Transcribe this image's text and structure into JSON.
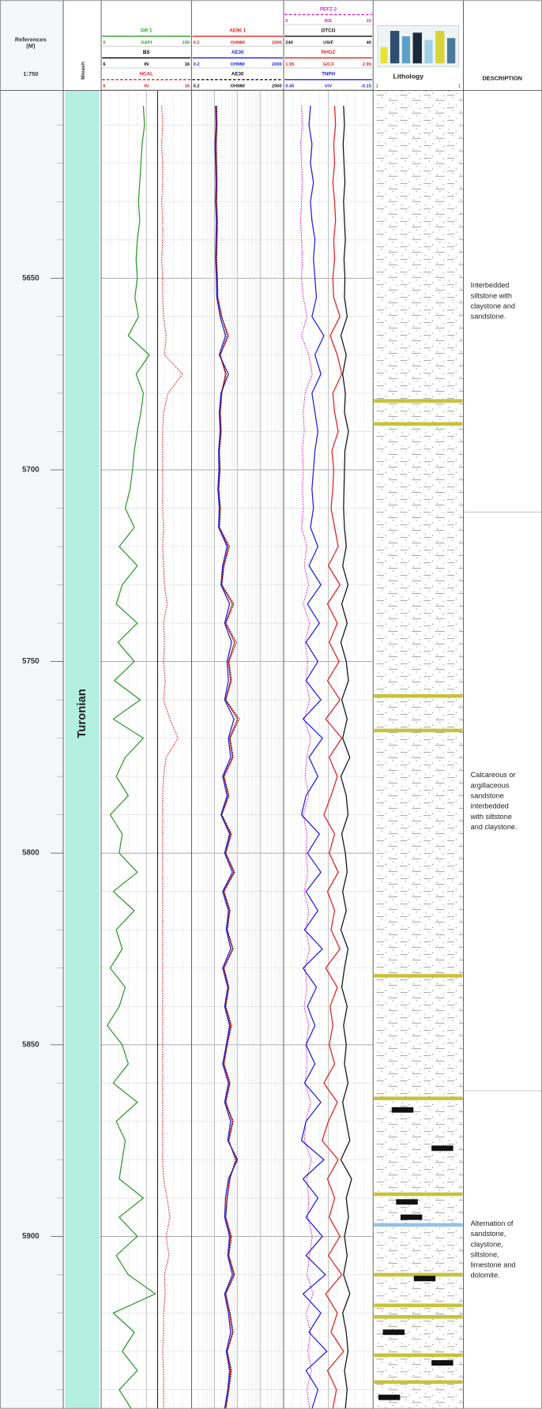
{
  "header": {
    "reference_lines": [
      "References",
      "(M)"
    ],
    "scale": "1:750",
    "stage_label": "Mwash",
    "description_label": "DESCRIPTION"
  },
  "depth": {
    "lim": [
      5601,
      5945
    ],
    "ticks": [
      5650,
      5700,
      5750,
      5800,
      5850,
      5900
    ],
    "minor_ticks": [
      5610,
      5620,
      5630,
      5640,
      5650,
      5660,
      5670,
      5680,
      5690,
      5700,
      5710,
      5720,
      5730,
      5740,
      5750,
      5760,
      5770,
      5780,
      5790,
      5800,
      5810,
      5820,
      5830,
      5840,
      5850,
      5860,
      5870,
      5880,
      5890,
      5900,
      5910,
      5920,
      5930,
      5940
    ]
  },
  "stage": {
    "name": "Turonian"
  },
  "samples": {
    "depth": [
      5605,
      5610,
      5615,
      5620,
      5625,
      5630,
      5635,
      5640,
      5645,
      5650,
      5655,
      5660,
      5665,
      5670,
      5675,
      5680,
      5685,
      5690,
      5695,
      5700,
      5705,
      5710,
      5715,
      5720,
      5725,
      5730,
      5735,
      5740,
      5745,
      5750,
      5755,
      5760,
      5765,
      5770,
      5775,
      5780,
      5785,
      5790,
      5795,
      5800,
      5805,
      5810,
      5815,
      5820,
      5825,
      5830,
      5835,
      5840,
      5845,
      5850,
      5855,
      5860,
      5865,
      5870,
      5875,
      5880,
      5885,
      5890,
      5895,
      5900,
      5905,
      5910,
      5915,
      5920,
      5925,
      5930,
      5935,
      5940,
      5945
    ]
  },
  "tracks": [
    {
      "scale": "linear",
      "curves": [
        {
          "name": "GR 1",
          "unit": "GAPI",
          "lim": [
            0,
            150
          ],
          "color": "#2e9a2e",
          "style": "solid",
          "values": [
            70,
            72,
            68,
            66,
            64,
            62,
            64,
            60,
            58,
            60,
            56,
            62,
            45,
            80,
            58,
            70,
            66,
            60,
            55,
            52,
            48,
            40,
            55,
            30,
            60,
            35,
            25,
            60,
            28,
            55,
            22,
            65,
            20,
            70,
            40,
            25,
            45,
            15,
            35,
            30,
            60,
            20,
            55,
            25,
            35,
            15,
            40,
            30,
            10,
            35,
            45,
            20,
            60,
            25,
            40,
            35,
            30,
            70,
            30,
            60,
            25,
            45,
            90,
            20,
            55,
            35,
            60,
            30,
            50
          ]
        },
        {
          "name": "BS",
          "unit": "IN",
          "lim": [
            6,
            16
          ],
          "color": "#000000",
          "style": "solid",
          "value": 12.25
        },
        {
          "name": "HCAL",
          "unit": "IN",
          "lim": [
            6,
            16
          ],
          "color": "#e02020",
          "style": "dotted",
          "values": [
            12.7,
            12.8,
            12.7,
            12.8,
            12.8,
            12.7,
            12.8,
            12.8,
            12.7,
            12.8,
            12.8,
            12.9,
            13.2,
            13.0,
            15.0,
            13.4,
            12.9,
            12.8,
            12.8,
            12.8,
            12.8,
            12.8,
            12.9,
            12.8,
            12.9,
            13.0,
            13.3,
            12.9,
            13.0,
            12.9,
            13.1,
            12.9,
            13.6,
            14.5,
            13.2,
            12.9,
            12.8,
            12.8,
            12.8,
            12.8,
            12.8,
            12.8,
            12.8,
            12.8,
            12.8,
            12.8,
            12.8,
            12.8,
            12.8,
            12.8,
            12.8,
            12.8,
            12.8,
            12.8,
            12.8,
            12.8,
            12.9,
            13.3,
            13.6,
            13.2,
            13.5,
            13.0,
            13.1,
            12.9,
            12.9,
            12.8,
            12.9,
            12.9,
            12.9
          ]
        }
      ]
    },
    {
      "scale": "log",
      "curves": [
        {
          "name": "AE90 1",
          "unit": "OHMM",
          "lim": [
            0.2,
            2000
          ],
          "color": "#e02020",
          "style": "solid",
          "values": [
            2.4,
            2.5,
            2.3,
            2.4,
            2.5,
            2.4,
            2.6,
            2.5,
            2.4,
            2.6,
            2.7,
            4.0,
            8.0,
            3.5,
            6.0,
            4.0,
            3.5,
            3.8,
            3.2,
            3.4,
            3.0,
            3.5,
            3.2,
            8.0,
            5.0,
            4.0,
            12,
            6.0,
            15,
            8.0,
            10,
            6.0,
            20,
            9.0,
            12,
            5.0,
            8.0,
            4.0,
            10,
            6.0,
            14,
            5.0,
            9.0,
            7.0,
            12,
            5.0,
            8.0,
            6.0,
            10,
            7.0,
            5.0,
            9.0,
            6.0,
            12,
            8.0,
            18,
            9.0,
            7.0,
            6.0,
            10,
            8.0,
            14,
            6.0,
            9.0,
            12,
            7.0,
            10,
            8.0,
            6.0
          ]
        },
        {
          "name": "AE30",
          "unit": "OHMM",
          "lim": [
            0.2,
            2000
          ],
          "color": "#1f1fe0",
          "style": "solid",
          "values": [
            2.2,
            2.3,
            2.1,
            2.2,
            2.3,
            2.2,
            2.4,
            2.3,
            2.2,
            2.4,
            2.5,
            3.5,
            6.0,
            3.2,
            8.0,
            3.8,
            3.2,
            3.5,
            3.0,
            3.1,
            2.8,
            3.2,
            3.0,
            7.0,
            4.5,
            3.8,
            9.0,
            5.5,
            11,
            7.0,
            8.0,
            5.5,
            14,
            8.0,
            10,
            4.5,
            7.0,
            3.8,
            9.0,
            5.5,
            12,
            4.5,
            8.0,
            6.5,
            10,
            4.5,
            7.5,
            5.5,
            9.0,
            6.5,
            4.5,
            8.0,
            5.5,
            10,
            7.5,
            20,
            8.0,
            6.0,
            5.5,
            9.0,
            7.5,
            12,
            5.5,
            8.0,
            10,
            6.5,
            9.0,
            7.5,
            5.5
          ]
        },
        {
          "name": "AE30",
          "unit": "OHMM",
          "lim": [
            0.2,
            2000
          ],
          "color": "#111111",
          "style": "dotted",
          "values": [
            2.5,
            2.6,
            2.4,
            2.5,
            2.6,
            2.5,
            2.7,
            2.6,
            2.5,
            2.7,
            2.8,
            4.2,
            7.0,
            3.6,
            6.5,
            4.2,
            3.6,
            3.9,
            3.3,
            3.5,
            3.1,
            3.6,
            3.3,
            9.0,
            5.2,
            4.2,
            14,
            6.2,
            18,
            8.5,
            11,
            6.2,
            24,
            9.5,
            13,
            5.2,
            8.5,
            4.2,
            11,
            6.2,
            15,
            5.2,
            9.5,
            7.2,
            13,
            5.2,
            8.5,
            6.2,
            11,
            7.2,
            5.2,
            9.5,
            6.2,
            13,
            8.5,
            16,
            9.5,
            7.2,
            6.2,
            11,
            8.5,
            15,
            6.2,
            9.5,
            13,
            7.2,
            11,
            8.5,
            6.2
          ]
        }
      ]
    },
    {
      "scale": "linear",
      "curves": [
        {
          "name": "PEFZ 2",
          "unit": "B/E",
          "lim": [
            0,
            10
          ],
          "color": "#e020c0",
          "style": "dotted",
          "values": [
            2.0,
            2.1,
            1.9,
            2.0,
            2.1,
            2.0,
            1.9,
            2.0,
            2.1,
            2.0,
            2.2,
            2.6,
            2.0,
            2.8,
            3.2,
            2.4,
            2.2,
            2.3,
            2.1,
            2.2,
            2.1,
            2.2,
            2.0,
            2.6,
            2.3,
            2.8,
            2.2,
            2.9,
            2.4,
            2.7,
            2.5,
            2.9,
            2.3,
            3.0,
            2.6,
            2.4,
            2.8,
            2.2,
            2.6,
            2.5,
            2.7,
            2.3,
            2.8,
            2.5,
            2.9,
            2.4,
            2.6,
            2.3,
            2.8,
            2.5,
            2.6,
            2.4,
            3.0,
            2.5,
            2.3,
            3.1,
            2.6,
            2.8,
            2.7,
            3.2,
            2.9,
            2.6,
            3.3,
            2.5,
            3.0,
            2.7,
            3.1,
            2.6,
            2.9
          ]
        },
        {
          "name": "DTCO",
          "unit": "US/F",
          "lim": [
            240,
            40
          ],
          "color": "#111111",
          "style": "solid",
          "values": [
            106,
            104,
            107,
            105,
            103,
            106,
            104,
            102,
            105,
            103,
            104,
            98,
            112,
            100,
            108,
            102,
            104,
            95,
            103,
            104,
            105,
            106,
            104,
            100,
            108,
            96,
            110,
            98,
            112,
            100,
            95,
            110,
            98,
            108,
            92,
            112,
            100,
            96,
            110,
            102,
            98,
            108,
            100,
            112,
            96,
            104,
            110,
            98,
            106,
            100,
            104,
            96,
            108,
            100,
            92,
            112,
            88,
            100,
            95,
            104,
            98,
            106,
            92,
            108,
            100,
            96,
            104,
            98,
            102
          ]
        },
        {
          "name": "RHOZ",
          "unit": "G/C3",
          "lim": [
            1.95,
            2.95
          ],
          "color": "#e02020",
          "style": "solid",
          "values": [
            2.52,
            2.53,
            2.51,
            2.52,
            2.5,
            2.52,
            2.53,
            2.51,
            2.52,
            2.5,
            2.51,
            2.58,
            2.47,
            2.55,
            2.6,
            2.5,
            2.52,
            2.56,
            2.49,
            2.51,
            2.5,
            2.48,
            2.52,
            2.56,
            2.45,
            2.58,
            2.44,
            2.55,
            2.46,
            2.57,
            2.44,
            2.58,
            2.42,
            2.6,
            2.46,
            2.55,
            2.48,
            2.4,
            2.52,
            2.46,
            2.56,
            2.44,
            2.52,
            2.48,
            2.58,
            2.42,
            2.55,
            2.47,
            2.5,
            2.46,
            2.52,
            2.4,
            2.55,
            2.45,
            2.38,
            2.56,
            2.44,
            2.52,
            2.46,
            2.58,
            2.45,
            2.6,
            2.42,
            2.55,
            2.48,
            2.62,
            2.44,
            2.54,
            2.5
          ]
        },
        {
          "name": "TNPH",
          "unit": "V/V",
          "lim": [
            0.45,
            -0.15
          ],
          "color": "#1f1fe0",
          "style": "solid",
          "values": [
            0.27,
            0.28,
            0.26,
            0.27,
            0.25,
            0.27,
            0.26,
            0.24,
            0.25,
            0.24,
            0.23,
            0.26,
            0.18,
            0.24,
            0.2,
            0.26,
            0.24,
            0.22,
            0.24,
            0.25,
            0.26,
            0.25,
            0.27,
            0.22,
            0.28,
            0.2,
            0.29,
            0.21,
            0.3,
            0.22,
            0.3,
            0.2,
            0.32,
            0.19,
            0.28,
            0.22,
            0.3,
            0.33,
            0.21,
            0.29,
            0.2,
            0.3,
            0.22,
            0.31,
            0.19,
            0.32,
            0.23,
            0.29,
            0.24,
            0.3,
            0.24,
            0.31,
            0.2,
            0.3,
            0.33,
            0.18,
            0.32,
            0.22,
            0.3,
            0.19,
            0.3,
            0.17,
            0.32,
            0.2,
            0.28,
            0.16,
            0.3,
            0.22,
            0.26
          ]
        }
      ]
    }
  ],
  "lithology": {
    "label": "Lithology",
    "scale": [
      1,
      1
    ],
    "yellow_beds": [
      5682,
      5688,
      5759,
      5768,
      5832,
      5864,
      5889,
      5910,
      5918,
      5921,
      5931,
      5938
    ],
    "blue_beds": [
      5897
    ],
    "black_beds": [
      5867,
      5877,
      5891,
      5895,
      5911,
      5925,
      5933,
      5942
    ]
  },
  "descriptions": {
    "boundaries": [
      5711,
      5862
    ],
    "intervals": [
      {
        "lines": [
          "Interbedded",
          "siltstone with",
          "claystone and",
          "sandstone."
        ]
      },
      {
        "lines": [
          "Calcareous or",
          "argillaceous",
          "sandstone",
          "interbedded",
          "with siltstone",
          "and claystone."
        ]
      },
      {
        "lines": [
          "Alternation of",
          "sandstone,",
          "claystone,",
          "siltstone,",
          "limestone and",
          "dolomite."
        ]
      }
    ]
  }
}
